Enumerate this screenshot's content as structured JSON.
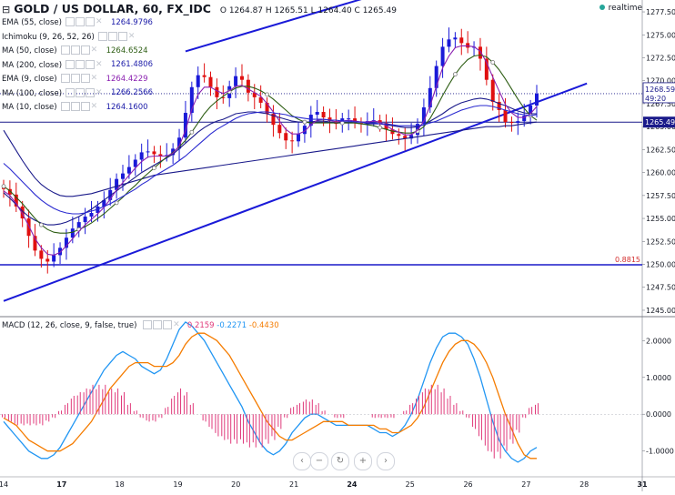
{
  "header": {
    "symbol_title": "GOLD / US DOLLAR, 60, FX_IDC",
    "ohlc_text": "O 1264.87 H 1265.51 L 1264.40 C 1265.49",
    "status_text": "realtime"
  },
  "indicators": [
    {
      "label": "EMA (55, close)",
      "value": "1264.9796",
      "color": "#1a1aa8"
    },
    {
      "label": "Ichimoku (9, 26, 52, 26)",
      "value": "",
      "color": "#888888"
    },
    {
      "label": "MA (50, close)",
      "value": "1264.6524",
      "color": "#2e5e14"
    },
    {
      "label": "MA (200, close)",
      "value": "1261.4806",
      "color": "#1a1aa8"
    },
    {
      "label": "EMA (9, close)",
      "value": "1264.4229",
      "color": "#8a1fb0"
    },
    {
      "label": "MA (100, close)",
      "value": "1266.2566",
      "color": "#1a1aa8"
    },
    {
      "label": "MA (10, close)",
      "value": "1264.1600",
      "color": "#1a1aa8"
    }
  ],
  "macd_legend": {
    "label": "MACD (12, 26, close, 9, false, true)",
    "hist_value": "0.2159",
    "macd_value": "-0.2271",
    "signal_value": "-0.4430"
  },
  "chart_data": {
    "type": "line",
    "price_axis": {
      "ticks": [
        "1277.50",
        "1275.00",
        "1272.50",
        "1270.00",
        "1267.50",
        "1265.00",
        "1262.50",
        "1260.00",
        "1257.50",
        "1255.00",
        "1252.50",
        "1250.00",
        "1247.50",
        "1245.00"
      ],
      "ylim": [
        1244.5,
        1278
      ],
      "last_price_label": "1268.59",
      "time_label": "49:20",
      "horizontal_line_label": "1265.49",
      "horizontal_line_value": 1265.49,
      "fib_label": "0.8815",
      "fib_value": 1249.95
    },
    "macd_axis": {
      "ticks": [
        "2.0000",
        "1.0000",
        "0.0000",
        "-1.0000"
      ],
      "ylim": [
        -1.6,
        2.6
      ]
    },
    "x_ticks": [
      "14",
      "17",
      "18",
      "19",
      "20",
      "21",
      "24",
      "25",
      "26",
      "27",
      "28",
      "31"
    ],
    "candles_close": [
      1258.2,
      1257.6,
      1256.3,
      1255.0,
      1253.1,
      1251.5,
      1250.6,
      1250.3,
      1251.0,
      1251.8,
      1252.9,
      1253.9,
      1254.6,
      1255.2,
      1255.6,
      1256.3,
      1257.0,
      1258.1,
      1259.3,
      1259.9,
      1260.6,
      1261.4,
      1262.2,
      1262.3,
      1262.0,
      1261.8,
      1261.9,
      1262.6,
      1263.8,
      1266.5,
      1269.3,
      1270.6,
      1270.4,
      1269.3,
      1268.2,
      1268.1,
      1269.4,
      1270.5,
      1270.1,
      1268.7,
      1268.2,
      1267.6,
      1266.4,
      1265.2,
      1264.3,
      1263.5,
      1263.4,
      1264.2,
      1265.1,
      1266.3,
      1266.6,
      1266.0,
      1265.6,
      1265.3,
      1265.9,
      1265.9,
      1265.4,
      1265.3,
      1265.6,
      1265.7,
      1265.4,
      1264.7,
      1264.2,
      1264.0,
      1263.7,
      1264.1,
      1265.3,
      1267.1,
      1269.2,
      1271.6,
      1273.7,
      1274.5,
      1274.7,
      1274.1,
      1273.6,
      1273.7,
      1272.4,
      1270.1,
      1267.7,
      1266.8,
      1265.5,
      1265.4,
      1265.6,
      1266.2,
      1267.3,
      1268.6
    ],
    "series": [
      {
        "name": "EMA (55, close)",
        "values": [
          1257.8,
          1257.2,
          1256.5,
          1255.8,
          1255.2,
          1254.8,
          1254.5,
          1254.3,
          1254.3,
          1254.4,
          1254.6,
          1254.9,
          1255.2,
          1255.6,
          1256.0,
          1256.5,
          1257.0,
          1257.5,
          1258.0,
          1258.5,
          1259.0,
          1259.5,
          1260.0,
          1260.4,
          1260.8,
          1261.2,
          1261.6,
          1262.0,
          1262.6,
          1263.2,
          1263.8,
          1264.4,
          1264.9,
          1265.3,
          1265.6,
          1265.8,
          1266.1,
          1266.4,
          1266.5,
          1266.6,
          1266.6,
          1266.5,
          1266.4,
          1266.2,
          1266.0,
          1265.8,
          1265.6,
          1265.5,
          1265.5,
          1265.5,
          1265.6,
          1265.6,
          1265.5,
          1265.4,
          1265.4,
          1265.4,
          1265.4,
          1265.3,
          1265.3,
          1265.3,
          1265.3,
          1265.2,
          1265.1,
          1265.0,
          1264.9,
          1264.9,
          1265.0,
          1265.2,
          1265.6,
          1266.0,
          1266.4,
          1266.9,
          1267.3,
          1267.6,
          1267.8,
          1268.0,
          1268.1,
          1268.0,
          1267.8,
          1267.5,
          1267.3,
          1267.0,
          1266.7,
          1266.5,
          1266.4,
          1266.4
        ]
      },
      {
        "name": "MA (200, close)",
        "values": [
          1264.6,
          1263.5,
          1262.4,
          1261.3,
          1260.3,
          1259.4,
          1258.7,
          1258.2,
          1257.8,
          1257.5,
          1257.4,
          1257.4,
          1257.5,
          1257.6,
          1257.7,
          1257.9,
          1258.1,
          1258.3,
          1258.5,
          1258.7,
          1258.9,
          1259.1,
          1259.3,
          1259.5,
          1259.7,
          1259.8,
          1259.9,
          1260.0,
          1260.1,
          1260.2,
          1260.3,
          1260.4,
          1260.5,
          1260.6,
          1260.7,
          1260.8,
          1260.9,
          1261.0,
          1261.1,
          1261.2,
          1261.3,
          1261.4,
          1261.5,
          1261.6,
          1261.7,
          1261.8,
          1261.9,
          1262.0,
          1262.1,
          1262.2,
          1262.3,
          1262.4,
          1262.5,
          1262.6,
          1262.7,
          1262.8,
          1262.9,
          1263.0,
          1263.1,
          1263.2,
          1263.3,
          1263.4,
          1263.5,
          1263.6,
          1263.7,
          1263.8,
          1263.9,
          1264.0,
          1264.1,
          1264.2,
          1264.3,
          1264.4,
          1264.5,
          1264.6,
          1264.7,
          1264.8,
          1264.9,
          1265.0,
          1265.0,
          1265.0,
          1265.1,
          1265.1,
          1265.2,
          1265.3,
          1265.4,
          1265.5
        ]
      },
      {
        "name": "MA (50, close)",
        "values": [
          1258.5,
          1258.0,
          1257.3,
          1256.6,
          1255.8,
          1255.0,
          1254.3,
          1253.8,
          1253.5,
          1253.4,
          1253.4,
          1253.5,
          1253.8,
          1254.1,
          1254.5,
          1255.0,
          1255.5,
          1256.1,
          1256.7,
          1257.3,
          1258.0,
          1258.6,
          1259.3,
          1259.9,
          1260.5,
          1261.1,
          1261.7,
          1262.2,
          1262.8,
          1263.5,
          1264.4,
          1265.4,
          1266.4,
          1267.2,
          1267.8,
          1268.3,
          1268.8,
          1269.2,
          1269.4,
          1269.4,
          1269.2,
          1268.9,
          1268.5,
          1268.0,
          1267.4,
          1266.8,
          1266.2,
          1265.8,
          1265.5,
          1265.4,
          1265.4,
          1265.4,
          1265.4,
          1265.4,
          1265.4,
          1265.4,
          1265.4,
          1265.3,
          1265.2,
          1265.1,
          1264.9,
          1264.7,
          1264.5,
          1264.4,
          1264.3,
          1264.3,
          1264.5,
          1265.0,
          1265.9,
          1267.1,
          1268.4,
          1269.6,
          1270.7,
          1271.6,
          1272.3,
          1272.7,
          1272.8,
          1272.6,
          1272.0,
          1271.2,
          1270.2,
          1269.1,
          1268.0,
          1267.0,
          1266.2,
          1265.7
        ]
      },
      {
        "name": "EMA (9, close)",
        "values": [
          1258.0,
          1257.5,
          1256.6,
          1255.5,
          1254.2,
          1252.8,
          1251.8,
          1251.1,
          1251.0,
          1251.3,
          1252.0,
          1252.8,
          1253.6,
          1254.3,
          1254.9,
          1255.5,
          1256.2,
          1257.1,
          1258.1,
          1258.9,
          1259.7,
          1260.5,
          1261.2,
          1261.7,
          1261.8,
          1261.8,
          1261.8,
          1262.1,
          1262.9,
          1264.6,
          1266.9,
          1268.5,
          1269.3,
          1269.3,
          1268.9,
          1268.6,
          1268.9,
          1269.4,
          1269.5,
          1269.1,
          1268.7,
          1268.3,
          1267.5,
          1266.6,
          1265.6,
          1264.7,
          1264.2,
          1264.2,
          1264.5,
          1265.2,
          1265.7,
          1265.8,
          1265.7,
          1265.5,
          1265.6,
          1265.7,
          1265.6,
          1265.5,
          1265.5,
          1265.6,
          1265.5,
          1265.1,
          1264.7,
          1264.4,
          1264.1,
          1264.1,
          1264.6,
          1265.6,
          1267.3,
          1269.4,
          1271.4,
          1272.7,
          1273.6,
          1273.8,
          1273.8,
          1273.7,
          1273.2,
          1272.0,
          1270.4,
          1268.9,
          1267.4,
          1266.5,
          1266.0,
          1266.0,
          1266.4,
          1267.2
        ]
      },
      {
        "name": "MA (100, close)",
        "values": [
          1261.0,
          1260.4,
          1259.7,
          1259.0,
          1258.3,
          1257.6,
          1257.0,
          1256.5,
          1256.1,
          1255.8,
          1255.6,
          1255.5,
          1255.5,
          1255.6,
          1255.8,
          1256.0,
          1256.3,
          1256.6,
          1257.0,
          1257.4,
          1257.8,
          1258.2,
          1258.7,
          1259.1,
          1259.6,
          1260.0,
          1260.4,
          1260.8,
          1261.3,
          1261.8,
          1262.4,
          1263.0,
          1263.6,
          1264.2,
          1264.7,
          1265.1,
          1265.5,
          1265.9,
          1266.2,
          1266.4,
          1266.5,
          1266.6,
          1266.6,
          1266.5,
          1266.4,
          1266.3,
          1266.1,
          1266.0,
          1265.9,
          1265.8,
          1265.8,
          1265.8,
          1265.7,
          1265.7,
          1265.6,
          1265.6,
          1265.5,
          1265.5,
          1265.4,
          1265.4,
          1265.3,
          1265.3,
          1265.2,
          1265.1,
          1265.1,
          1265.1,
          1265.1,
          1265.2,
          1265.4,
          1265.6,
          1265.9,
          1266.2,
          1266.5,
          1266.8,
          1267.0,
          1267.2,
          1267.3,
          1267.3,
          1267.2,
          1267.0,
          1266.8,
          1266.6,
          1266.4,
          1266.3,
          1266.2,
          1266.3
        ]
      },
      {
        "name": "MACD line",
        "values": [
          -0.2,
          -0.4,
          -0.6,
          -0.8,
          -1.0,
          -1.1,
          -1.2,
          -1.2,
          -1.1,
          -0.9,
          -0.6,
          -0.3,
          0.0,
          0.3,
          0.6,
          0.9,
          1.2,
          1.4,
          1.6,
          1.7,
          1.6,
          1.5,
          1.3,
          1.2,
          1.1,
          1.2,
          1.5,
          1.9,
          2.3,
          2.5,
          2.4,
          2.2,
          2.0,
          1.7,
          1.4,
          1.1,
          0.8,
          0.5,
          0.2,
          -0.2,
          -0.5,
          -0.8,
          -1.0,
          -1.1,
          -1.0,
          -0.8,
          -0.5,
          -0.3,
          -0.1,
          0.0,
          0.0,
          -0.1,
          -0.2,
          -0.3,
          -0.3,
          -0.3,
          -0.3,
          -0.3,
          -0.3,
          -0.4,
          -0.5,
          -0.5,
          -0.6,
          -0.5,
          -0.3,
          0.0,
          0.4,
          0.9,
          1.4,
          1.8,
          2.1,
          2.2,
          2.2,
          2.1,
          1.9,
          1.5,
          1.0,
          0.4,
          -0.2,
          -0.7,
          -1.0,
          -1.2,
          -1.3,
          -1.2,
          -1.0,
          -0.9
        ]
      },
      {
        "name": "Signal line",
        "values": [
          -0.1,
          -0.2,
          -0.3,
          -0.5,
          -0.7,
          -0.8,
          -0.9,
          -1.0,
          -1.0,
          -1.0,
          -0.9,
          -0.8,
          -0.6,
          -0.4,
          -0.2,
          0.1,
          0.4,
          0.7,
          0.9,
          1.1,
          1.3,
          1.4,
          1.4,
          1.4,
          1.3,
          1.3,
          1.3,
          1.4,
          1.6,
          1.9,
          2.1,
          2.2,
          2.2,
          2.1,
          2.0,
          1.8,
          1.6,
          1.3,
          1.0,
          0.7,
          0.4,
          0.1,
          -0.2,
          -0.4,
          -0.6,
          -0.7,
          -0.7,
          -0.6,
          -0.5,
          -0.4,
          -0.3,
          -0.2,
          -0.2,
          -0.2,
          -0.2,
          -0.3,
          -0.3,
          -0.3,
          -0.3,
          -0.3,
          -0.4,
          -0.4,
          -0.5,
          -0.5,
          -0.4,
          -0.3,
          -0.1,
          0.2,
          0.6,
          1.0,
          1.4,
          1.7,
          1.9,
          2.0,
          2.0,
          1.9,
          1.7,
          1.4,
          1.0,
          0.5,
          0.0,
          -0.4,
          -0.8,
          -1.1,
          -1.2,
          -1.2
        ]
      }
    ],
    "trendlines": [
      {
        "name": "lower channel",
        "from": [
          0,
          1246.0
        ],
        "to": [
          93,
          1269.7
        ]
      },
      {
        "name": "upper channel",
        "from": [
          29,
          1273.2
        ],
        "to": [
          65,
          1280.5
        ]
      }
    ]
  },
  "nav_buttons": [
    "minus-icon",
    "reset-icon",
    "plus-icon",
    "chevron-right-icon",
    "chevron-left-icon"
  ]
}
